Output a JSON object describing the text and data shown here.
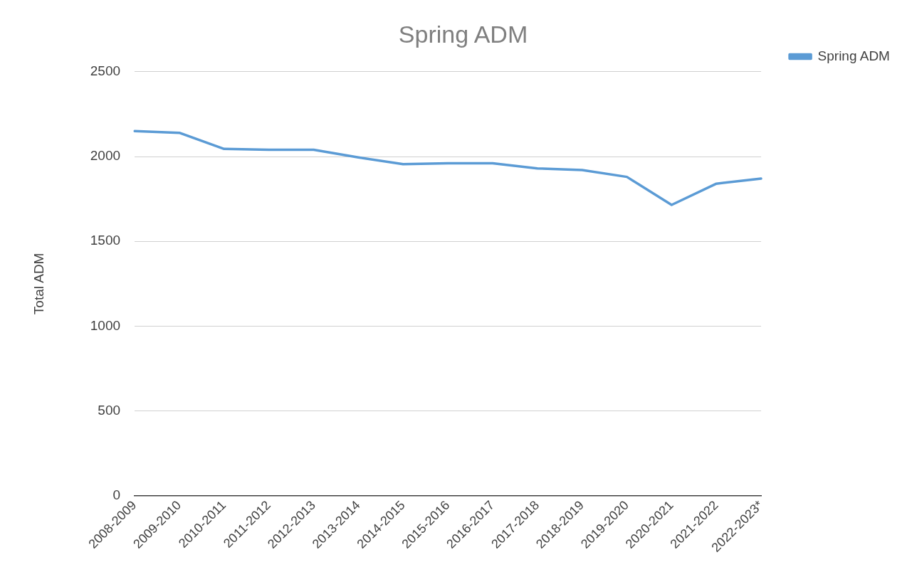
{
  "chart_data": {
    "type": "line",
    "title": "Spring ADM",
    "ylabel": "Total ADM",
    "categories": [
      "2008-2009",
      "2009-2010",
      "2010-2011",
      "2011-2012",
      "2012-2013",
      "2013-2014",
      "2014-2015",
      "2015-2016",
      "2016-2017",
      "2017-2018",
      "2018-2019",
      "2019-2020",
      "2020-2021",
      "2021-2022",
      "2022-2023*"
    ],
    "series": [
      {
        "name": "Spring ADM",
        "color": "#5b9bd5",
        "values": [
          2150,
          2140,
          2045,
          2040,
          2040,
          1995,
          1955,
          1960,
          1960,
          1930,
          1920,
          1880,
          1715,
          1840,
          1870
        ]
      }
    ],
    "ylim": [
      0,
      2500
    ],
    "yticks": [
      0,
      500,
      1000,
      1500,
      2000,
      2500
    ],
    "grid": "y",
    "legend": "top right",
    "marker": "none",
    "line_style": "solid"
  }
}
